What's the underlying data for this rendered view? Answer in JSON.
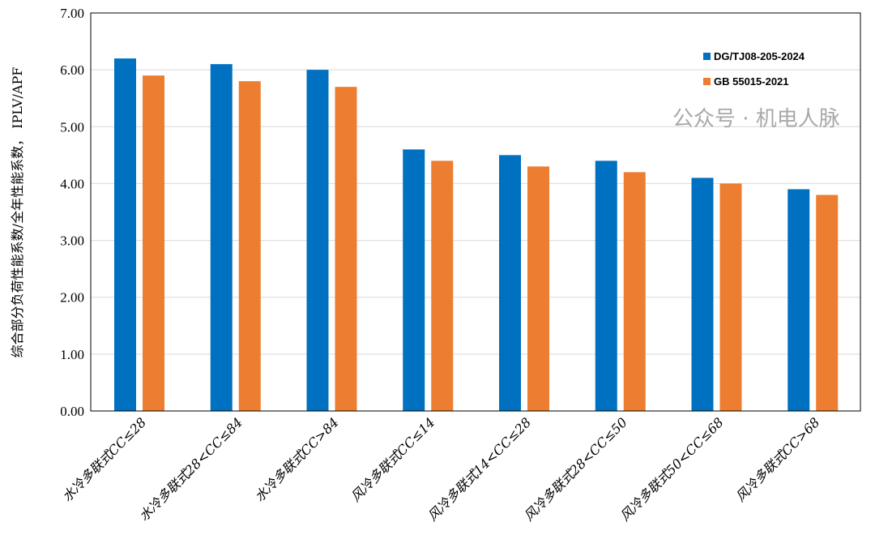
{
  "chart_data": {
    "type": "bar",
    "title": "",
    "xlabel": "",
    "ylabel": "综合部分负荷性能系数/全年性能系数， IPLV/APF",
    "ylim": [
      0,
      7
    ],
    "yticks": [
      "0.00",
      "1.00",
      "2.00",
      "3.00",
      "4.00",
      "5.00",
      "6.00",
      "7.00"
    ],
    "grid": true,
    "legend_position": "top-right",
    "categories": [
      "水冷多联式CC≤28",
      "水冷多联式28<CC≤84",
      "水冷多联式CC>84",
      "风冷多联式CC≤14",
      "风冷多联式14<CC≤28",
      "风冷多联式28<CC≤50",
      "风冷多联式50<CC≤68",
      "风冷多联式CC>68"
    ],
    "series": [
      {
        "name": "DG/TJ08-205-2024",
        "color": "#0070c0",
        "values": [
          6.2,
          6.1,
          6.0,
          4.6,
          4.5,
          4.4,
          4.1,
          3.9
        ]
      },
      {
        "name": "GB 55015-2021",
        "color": "#ed7d31",
        "values": [
          5.9,
          5.8,
          5.7,
          4.4,
          4.3,
          4.2,
          4.0,
          3.8
        ]
      }
    ]
  },
  "watermark": "公众号 · 机电人脉"
}
